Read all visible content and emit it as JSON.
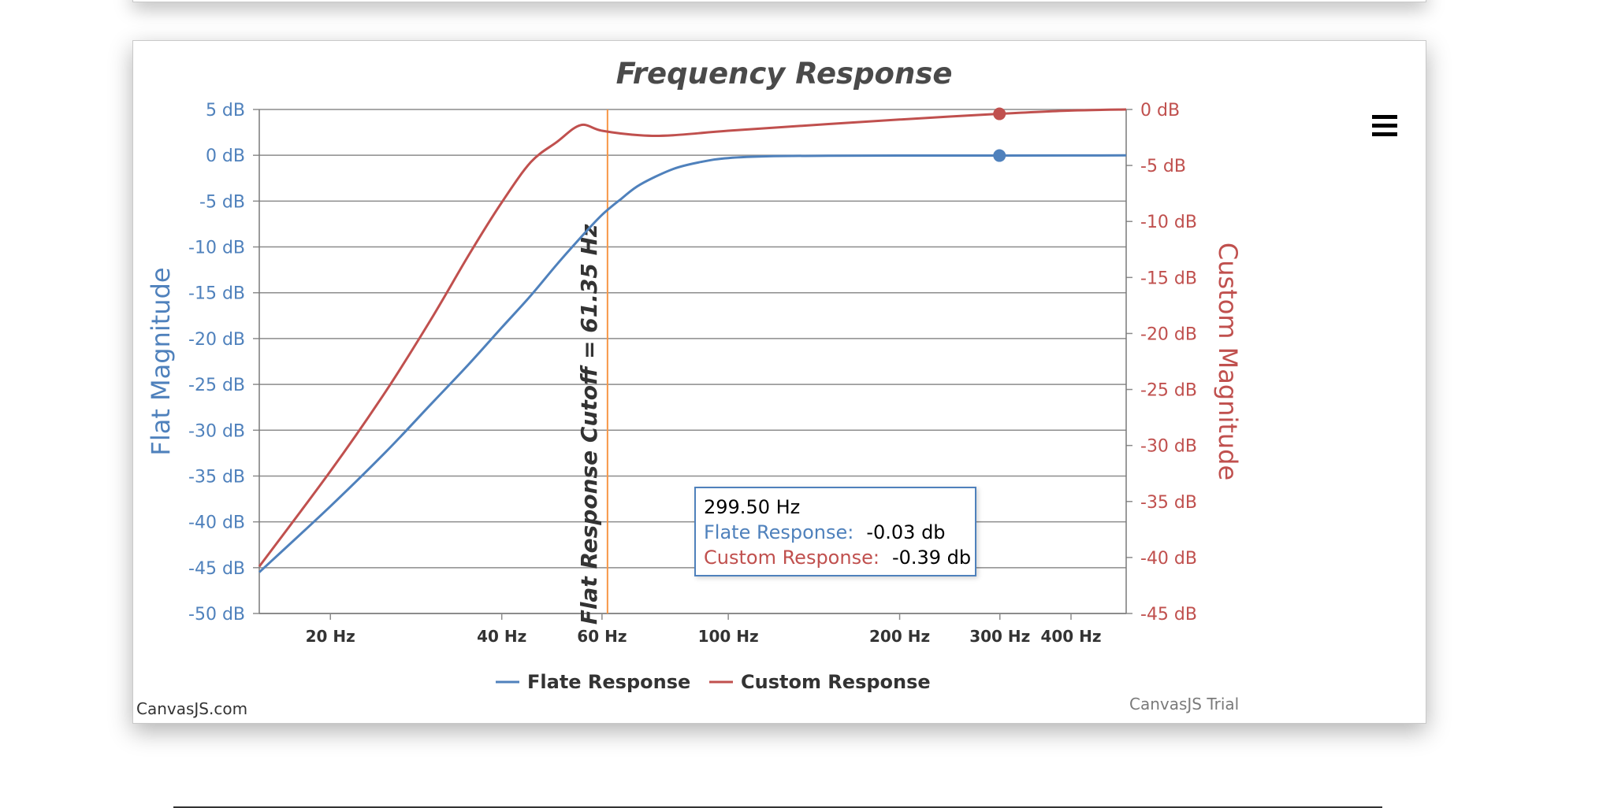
{
  "chart_data": {
    "type": "line",
    "title": "Frequency Response",
    "x_axis": {
      "scale": "log",
      "range": [
        15,
        500
      ],
      "ticks": [
        20,
        40,
        60,
        100,
        200,
        300,
        400
      ],
      "tick_labels": [
        "20 Hz",
        "40 Hz",
        "60 Hz",
        "100 Hz",
        "200 Hz",
        "300 Hz",
        "400 Hz"
      ]
    },
    "y_axis_left": {
      "title": "Flat Magnitude",
      "range": [
        -50,
        5
      ],
      "ticks": [
        5,
        0,
        -5,
        -10,
        -15,
        -20,
        -25,
        -30,
        -35,
        -40,
        -45,
        -50
      ],
      "tick_labels": [
        "5 dB",
        "0 dB",
        "-5 dB",
        "-10 dB",
        "-15 dB",
        "-20 dB",
        "-25 dB",
        "-30 dB",
        "-35 dB",
        "-40 dB",
        "-45 dB",
        "-50 dB"
      ],
      "color": "#4f81bc"
    },
    "y_axis_right": {
      "title": "Custom Magnitude",
      "range": [
        -45,
        0
      ],
      "ticks": [
        0,
        -5,
        -10,
        -15,
        -20,
        -25,
        -30,
        -35,
        -40,
        -45
      ],
      "tick_labels": [
        "0 dB",
        "-5 dB",
        "-10 dB",
        "-15 dB",
        "-20 dB",
        "-25 dB",
        "-30 dB",
        "-35 dB",
        "-40 dB",
        "-45 dB"
      ],
      "color": "#c0504e"
    },
    "grid": true,
    "legend_position": "bottom",
    "series": [
      {
        "name": "Flate Response",
        "axis": "left",
        "color": "#4f81bc",
        "points": [
          [
            15,
            -45.5
          ],
          [
            20,
            -38.3
          ],
          [
            25,
            -32.4
          ],
          [
            30,
            -27.2
          ],
          [
            35,
            -22.8
          ],
          [
            40,
            -18.8
          ],
          [
            45,
            -15.3
          ],
          [
            50,
            -11.9
          ],
          [
            55,
            -9.0
          ],
          [
            60,
            -6.5
          ],
          [
            65,
            -4.7
          ],
          [
            70,
            -3.2
          ],
          [
            80,
            -1.5
          ],
          [
            90,
            -0.7
          ],
          [
            100,
            -0.3
          ],
          [
            120,
            -0.1
          ],
          [
            150,
            -0.05
          ],
          [
            200,
            -0.03
          ],
          [
            299.5,
            -0.03
          ],
          [
            400,
            -0.02
          ],
          [
            500,
            -0.01
          ]
        ]
      },
      {
        "name": "Custom Response",
        "axis": "right",
        "color": "#c0504e",
        "points": [
          [
            15,
            -40.8
          ],
          [
            20,
            -32.3
          ],
          [
            25,
            -25.2
          ],
          [
            30,
            -18.8
          ],
          [
            35,
            -13.0
          ],
          [
            40,
            -8.3
          ],
          [
            45,
            -4.7
          ],
          [
            50,
            -2.9
          ],
          [
            55,
            -1.4
          ],
          [
            60,
            -1.9
          ],
          [
            70,
            -2.3
          ],
          [
            80,
            -2.3
          ],
          [
            100,
            -1.9
          ],
          [
            150,
            -1.3
          ],
          [
            200,
            -0.9
          ],
          [
            299.5,
            -0.39
          ],
          [
            400,
            -0.1
          ],
          [
            500,
            0
          ]
        ]
      }
    ],
    "annotations": [
      {
        "type": "vertical_line",
        "x": 61.35,
        "color": "#f79646",
        "label": "Flat Response Cutoff = 61.35 Hz"
      }
    ],
    "highlight": {
      "x": 299.5,
      "x_label": "299.50 Hz",
      "entries": [
        {
          "label": "Flate Response:",
          "value": "-0.03 db"
        },
        {
          "label": "Custom Response:",
          "value": "-0.39 db"
        }
      ]
    }
  },
  "credits": {
    "text": "CanvasJS.com",
    "trial": "CanvasJS Trial"
  },
  "menu": {
    "icon": "hamburger-menu-icon"
  }
}
